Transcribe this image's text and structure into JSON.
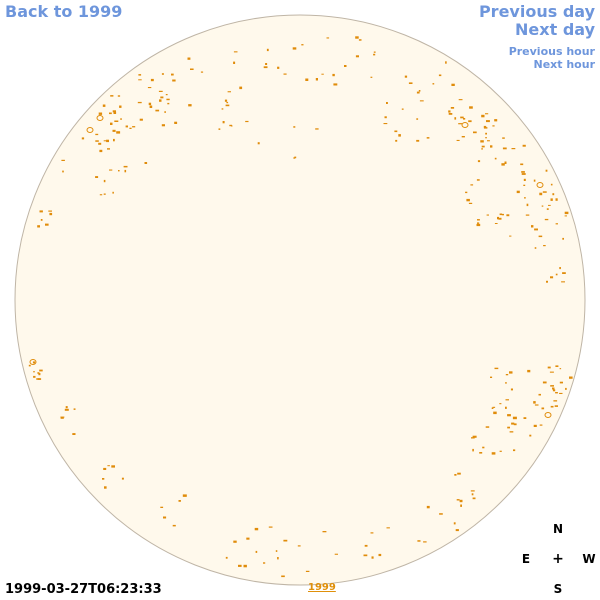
{
  "nav": {
    "back_label": "Back to 1999",
    "prev_day_label": "Previous day",
    "next_day_label": "Next day",
    "prev_hour_label": "Previous hour",
    "next_hour_label": "Next hour"
  },
  "timestamp": "1999-03-27T06:23:33",
  "year_link": "1999",
  "compass": {
    "north": "N",
    "east": "E",
    "center": "+",
    "west": "W",
    "south": "S"
  },
  "colors": {
    "link": "#6e96dc",
    "disk_fill": "#fff9ec",
    "disk_stroke": "#bfb5a6",
    "feature": "#e08c0a",
    "year_link": "#e0900a"
  }
}
